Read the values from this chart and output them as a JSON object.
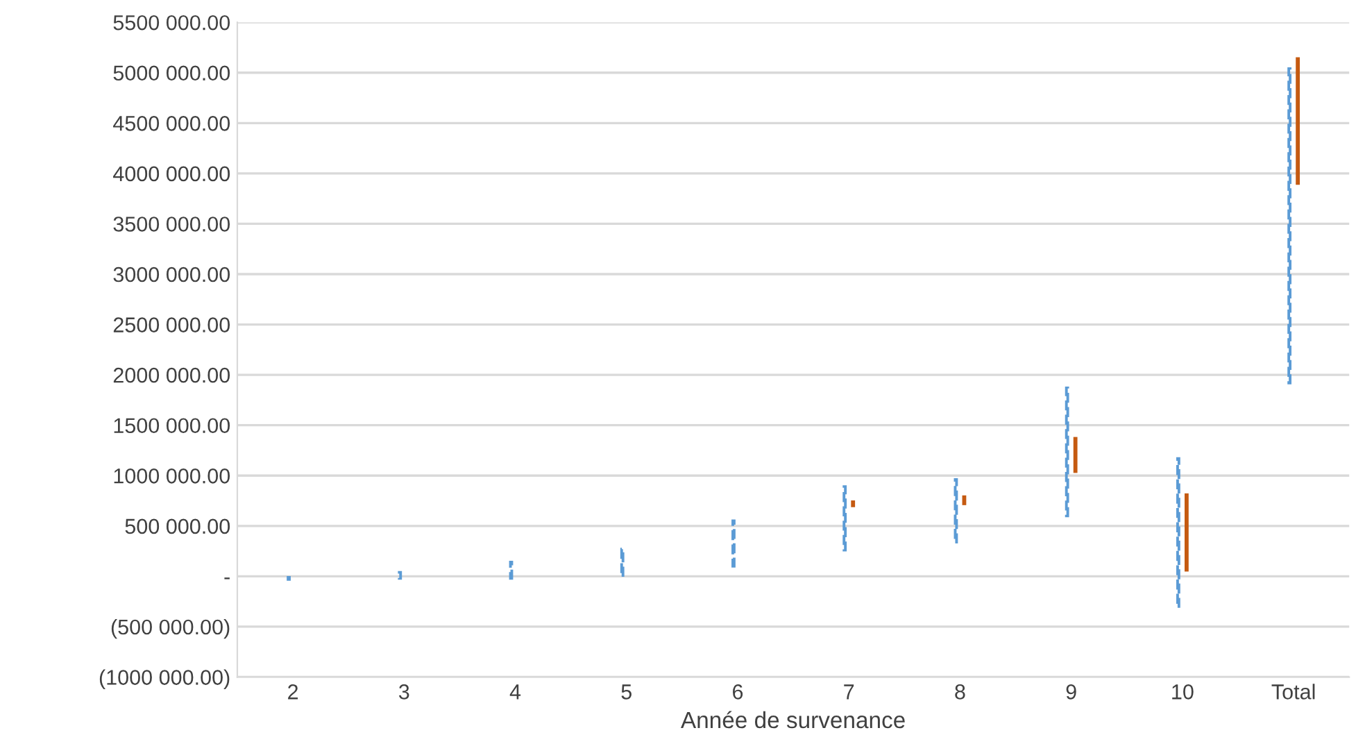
{
  "chart_data": {
    "type": "bar",
    "xlabel": "Année de survenance",
    "categories": [
      "2",
      "3",
      "4",
      "5",
      "6",
      "7",
      "8",
      "9",
      "10",
      "Total"
    ],
    "series": [
      {
        "color": "#5b9bd5",
        "line_style": "dashed",
        "base": [
          -30000,
          -20000,
          -20000,
          10000,
          100000,
          260000,
          340000,
          600000,
          -300000,
          1920000
        ],
        "values": [
          20000,
          60000,
          160000,
          260000,
          450000,
          630000,
          620000,
          1270000,
          1470000,
          3120000
        ]
      },
      {
        "color": "#c55a11",
        "line_style": "solid",
        "base": [
          null,
          null,
          null,
          null,
          null,
          700000,
          720000,
          1040000,
          60000,
          3900000
        ],
        "values": [
          null,
          null,
          null,
          null,
          null,
          40000,
          70000,
          330000,
          750000,
          1240000
        ]
      }
    ],
    "ylim": [
      -1000000,
      5500000
    ],
    "yticks": [
      {
        "value": -1000000,
        "label": "(1000 000.00)"
      },
      {
        "value": -500000,
        "label": "(500 000.00)"
      },
      {
        "value": 0,
        "label": "-"
      },
      {
        "value": 500000,
        "label": "500 000.00"
      },
      {
        "value": 1000000,
        "label": "1000 000.00"
      },
      {
        "value": 1500000,
        "label": "1500 000.00"
      },
      {
        "value": 2000000,
        "label": "2000 000.00"
      },
      {
        "value": 2500000,
        "label": "2500 000.00"
      },
      {
        "value": 3000000,
        "label": "3000 000.00"
      },
      {
        "value": 3500000,
        "label": "3500 000.00"
      },
      {
        "value": 4000000,
        "label": "4000 000.00"
      },
      {
        "value": 4500000,
        "label": "4500 000.00"
      },
      {
        "value": 5000000,
        "label": "5000 000.00"
      },
      {
        "value": 5500000,
        "label": "5500 000.00"
      }
    ],
    "grid": "y"
  }
}
